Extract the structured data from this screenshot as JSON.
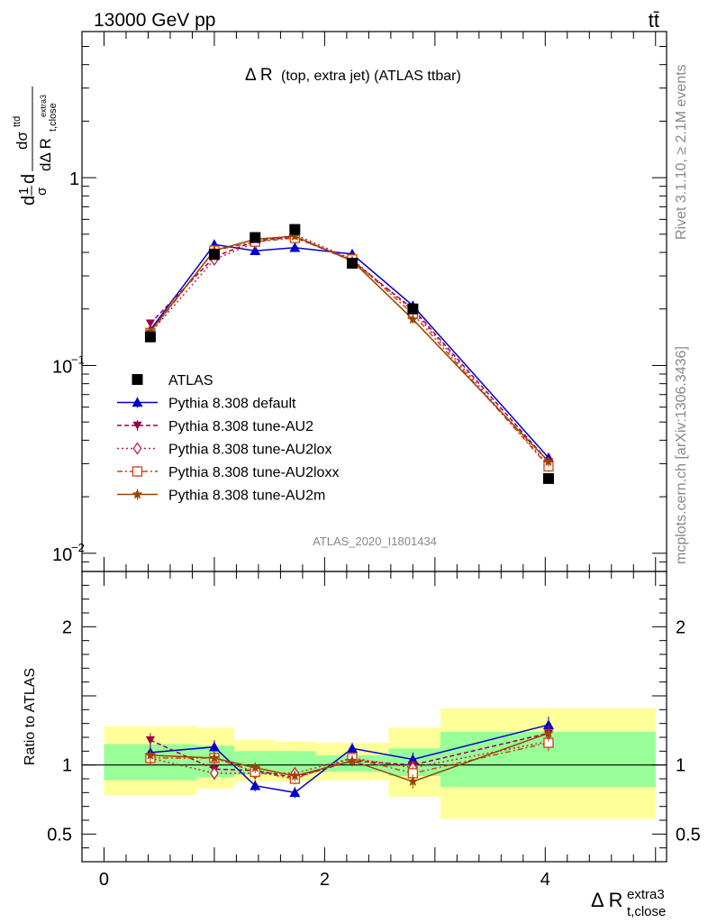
{
  "header": {
    "left": "13000 GeV pp",
    "right": "tt̄"
  },
  "side_labels": {
    "rivet": "Rivet 3.1.10, ≥ 2.1M events",
    "mcplots": "mcplots.cern.ch [arXiv:1306.3436]"
  },
  "watermark": "ATLAS_2020_I1801434",
  "title": {
    "main": "Δ R",
    "sub": " (top, extra jet) (ATLAS ttbar)"
  },
  "axes": {
    "ylabel_top": "d¹/σ dσ^ttd / dΔ R_t,close^extra3",
    "ylabel_top_parts": {
      "frac1_num": "1",
      "frac1_den": "σ",
      "frac2_num": "dσ",
      "sup": "ttd",
      "frac2_den": "dΔ R",
      "sub": "t,close",
      "subsup": "extra3",
      "d": "d"
    },
    "ylabel_bottom": "Ratio to ATLAS",
    "xlabel_main": "Δ R",
    "xlabel_sup": "extra3",
    "xlabel_sub": "t,close"
  },
  "chart_data": {
    "type": "line",
    "x": [
      0.42,
      1.0,
      1.37,
      1.73,
      2.25,
      2.8,
      4.03
    ],
    "bin_edges": [
      0,
      0.84,
      1.18,
      1.55,
      1.92,
      2.58,
      3.05,
      5.0
    ],
    "xlim": [
      -0.2,
      5.1
    ],
    "ylim_top": [
      0.008,
      6.0
    ],
    "yscale_top": "log",
    "ylim_ratio": [
      0.3,
      2.4
    ],
    "top_yticks": [
      {
        "v": 1,
        "label": "1"
      },
      {
        "v": 0.1,
        "label": "10",
        "exp": "−1"
      },
      {
        "v": 0.01,
        "label": "10",
        "exp": "−2"
      }
    ],
    "ratio_yticks": [
      {
        "v": 2,
        "label": "2"
      },
      {
        "v": 1,
        "label": "1"
      },
      {
        "v": 0.5,
        "label": "0.5"
      }
    ],
    "xticks": [
      {
        "v": 0,
        "label": "0"
      },
      {
        "v": 2,
        "label": "2"
      },
      {
        "v": 4,
        "label": "4"
      }
    ],
    "data": {
      "name": "ATLAS",
      "values": [
        0.142,
        0.39,
        0.48,
        0.53,
        0.35,
        0.2,
        0.025
      ]
    },
    "band_green": [
      [
        0.89,
        1.15
      ],
      [
        0.91,
        1.14
      ],
      [
        0.93,
        1.1
      ],
      [
        0.94,
        1.1
      ],
      [
        0.95,
        1.07
      ],
      [
        0.92,
        1.12
      ],
      [
        0.84,
        1.24
      ]
    ],
    "band_yellow": [
      [
        0.78,
        1.28
      ],
      [
        0.83,
        1.27
      ],
      [
        0.88,
        1.18
      ],
      [
        0.88,
        1.17
      ],
      [
        0.89,
        1.16
      ],
      [
        0.77,
        1.27
      ],
      [
        0.61,
        1.41
      ]
    ],
    "series": [
      {
        "name": "Pythia 8.308 default",
        "color": "#0000cc",
        "dash": "",
        "marker": "triangle-up",
        "ratio": [
          1.09,
          1.13,
          0.85,
          0.8,
          1.12,
          1.04,
          1.29
        ],
        "err": [
          0.05,
          0.05,
          0.04,
          0.04,
          0.04,
          0.05,
          0.06
        ]
      },
      {
        "name": "Pythia 8.308 tune-AU2",
        "color": "#990044",
        "dash": "5,3",
        "marker": "triangle-down",
        "ratio": [
          1.18,
          0.97,
          0.96,
          0.91,
          1.03,
          1.0,
          1.23
        ],
        "err": [
          0.05,
          0.05,
          0.04,
          0.04,
          0.04,
          0.05,
          0.06
        ]
      },
      {
        "name": "Pythia 8.308 tune-AU2lox",
        "color": "#bb2244",
        "dash": "2,3",
        "marker": "diamond-open",
        "ratio": [
          1.05,
          0.94,
          0.94,
          0.94,
          1.05,
          0.98,
          1.17
        ],
        "err": [
          0.05,
          0.05,
          0.04,
          0.04,
          0.04,
          0.05,
          0.06
        ]
      },
      {
        "name": "Pythia 8.308 tune-AU2loxx",
        "color": "#cc4411",
        "dash": "6,3,2,3",
        "marker": "square-open",
        "ratio": [
          1.05,
          1.05,
          0.95,
          0.9,
          1.05,
          0.94,
          1.16
        ],
        "err": [
          0.05,
          0.05,
          0.04,
          0.04,
          0.04,
          0.05,
          0.06
        ]
      },
      {
        "name": "Pythia 8.308 tune-AU2m",
        "color": "#994400",
        "dash": "",
        "marker": "star",
        "ratio": [
          1.07,
          1.05,
          0.98,
          0.92,
          1.03,
          0.88,
          1.23
        ],
        "err": [
          0.05,
          0.05,
          0.04,
          0.04,
          0.04,
          0.05,
          0.06
        ]
      }
    ],
    "legend_position": "bottom-left"
  }
}
